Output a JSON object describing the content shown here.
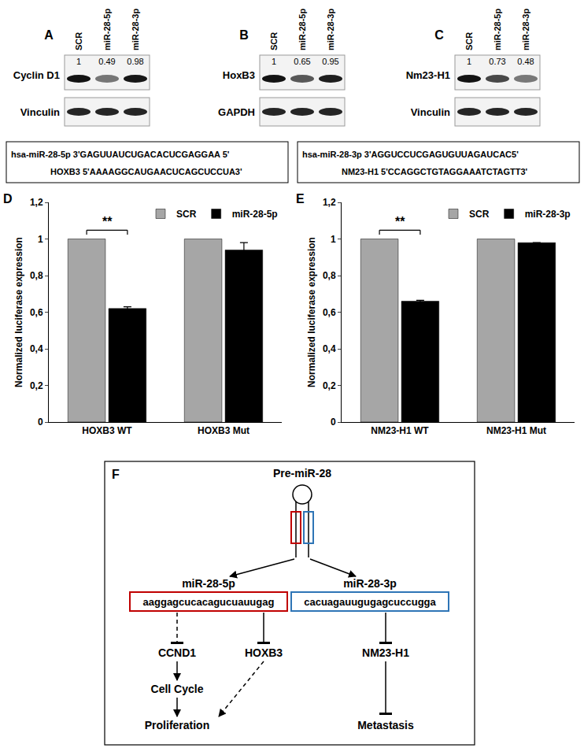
{
  "blots": [
    {
      "label": "A",
      "lanes": [
        "SCR",
        "miR-28-5p",
        "miR-28-3p"
      ],
      "protein": "Cyclin D1",
      "values": [
        1,
        0.49,
        0.98
      ],
      "loading_control": "Vinculin"
    },
    {
      "label": "B",
      "lanes": [
        "SCR",
        "miR-28-5p",
        "miR-28-3p"
      ],
      "protein": "HoxB3",
      "values": [
        1,
        0.65,
        0.95
      ],
      "loading_control": "GAPDH"
    },
    {
      "label": "C",
      "lanes": [
        "SCR",
        "miR-28-5p",
        "miR-28-3p"
      ],
      "protein": "Nm23-H1",
      "values": [
        1,
        0.73,
        0.48
      ],
      "loading_control": "Vinculin"
    }
  ],
  "chart_data": [
    {
      "type": "bar",
      "label": "D",
      "sequences": [
        "hsa-miR-28-5p 3'GAGUUAUCUGACACUCGAGGAA 5'",
        "HOXB3 5'AAAAGGCAUGAACUCAGCUCCUA3'"
      ],
      "categories": [
        "HOXB3 WT",
        "HOXB3 Mut"
      ],
      "series": [
        {
          "name": "SCR",
          "color": "#a6a6a6",
          "values": [
            1,
            1
          ]
        },
        {
          "name": "miR-28-5p",
          "color": "#000000",
          "values": [
            0.62,
            0.94
          ],
          "errors": [
            0.01,
            0.04
          ]
        }
      ],
      "y_label": "Normalized luciferase expression",
      "ylim": [
        0,
        1.2
      ],
      "yticks": [
        0,
        {
          "value": 0.2,
          "label": "0,2"
        },
        {
          "value": 0.4,
          "label": "0,4"
        },
        {
          "value": 0.6,
          "label": "0,6"
        },
        {
          "value": 0.8,
          "label": "0,8"
        },
        1,
        {
          "value": 1.2,
          "label": "1,2"
        }
      ],
      "grid": false,
      "legend": "upper right",
      "annotations": [
        {
          "text": "**",
          "category": "HOXB3 WT"
        }
      ]
    },
    {
      "type": "bar",
      "label": "E",
      "sequences": [
        "hsa-miR-28-3p 3'AGGUCCUCGAGUGUUAGAUCAC5'",
        "NM23-H1 5'CCAGGCTGTAGGAAATCTAGTT3'"
      ],
      "categories": [
        "NM23-H1 WT",
        "NM23-H1 Mut"
      ],
      "series": [
        {
          "name": "SCR",
          "color": "#a6a6a6",
          "values": [
            1,
            1
          ]
        },
        {
          "name": "miR-28-3p",
          "color": "#000000",
          "values": [
            0.66,
            0.98
          ],
          "errors": [
            0.005,
            0
          ]
        }
      ],
      "y_label": "Normalized luciferase expression",
      "ylim": [
        0,
        1.2
      ],
      "yticks": [
        0,
        {
          "value": 0.2,
          "label": "0,2"
        },
        {
          "value": 0.4,
          "label": "0,4"
        },
        {
          "value": 0.6,
          "label": "0,6"
        },
        {
          "value": 0.8,
          "label": "0,8"
        },
        1,
        {
          "value": 1.2,
          "label": "1,2"
        }
      ],
      "grid": false,
      "legend": "upper right",
      "annotations": [
        {
          "text": "**",
          "category": "NM23-H1 WT"
        }
      ]
    }
  ],
  "diagram": {
    "label": "F",
    "nodes": [
      {
        "label": "Pre-miR-28"
      },
      {
        "label": "miR-28-5p",
        "sequence": "aaggagcucacagucuauugag",
        "color": "#c00000"
      },
      {
        "label": "miR-28-3p",
        "sequence": "cacuagauugugagcuccugga",
        "color": "#2e75b6"
      },
      {
        "label": "CCND1"
      },
      {
        "label": "HOXB3"
      },
      {
        "label": "NM23-H1"
      },
      {
        "label": "Cell Cycle"
      },
      {
        "label": "Proliferation"
      },
      {
        "label": "Metastasis"
      }
    ],
    "edges": [
      {
        "from": "Pre-miR-28",
        "to": "miR-28-5p",
        "kind": "activate",
        "line_style": "solid"
      },
      {
        "from": "Pre-miR-28",
        "to": "miR-28-3p",
        "kind": "activate",
        "line_style": "solid"
      },
      {
        "from": "miR-28-5p",
        "to": "CCND1",
        "kind": "inhibit",
        "line_style": "dashed"
      },
      {
        "from": "miR-28-5p",
        "to": "HOXB3",
        "kind": "inhibit",
        "line_style": "solid"
      },
      {
        "from": "miR-28-3p",
        "to": "NM23-H1",
        "kind": "inhibit",
        "line_style": "solid"
      },
      {
        "from": "CCND1",
        "to": "Cell Cycle",
        "kind": "activate",
        "line_style": "solid"
      },
      {
        "from": "Cell Cycle",
        "to": "Proliferation",
        "kind": "activate",
        "line_style": "solid"
      },
      {
        "from": "HOXB3",
        "to": "Proliferation",
        "kind": "activate",
        "line_style": "dashed"
      },
      {
        "from": "NM23-H1",
        "to": "Metastasis",
        "kind": "inhibit",
        "line_style": "solid"
      }
    ]
  }
}
